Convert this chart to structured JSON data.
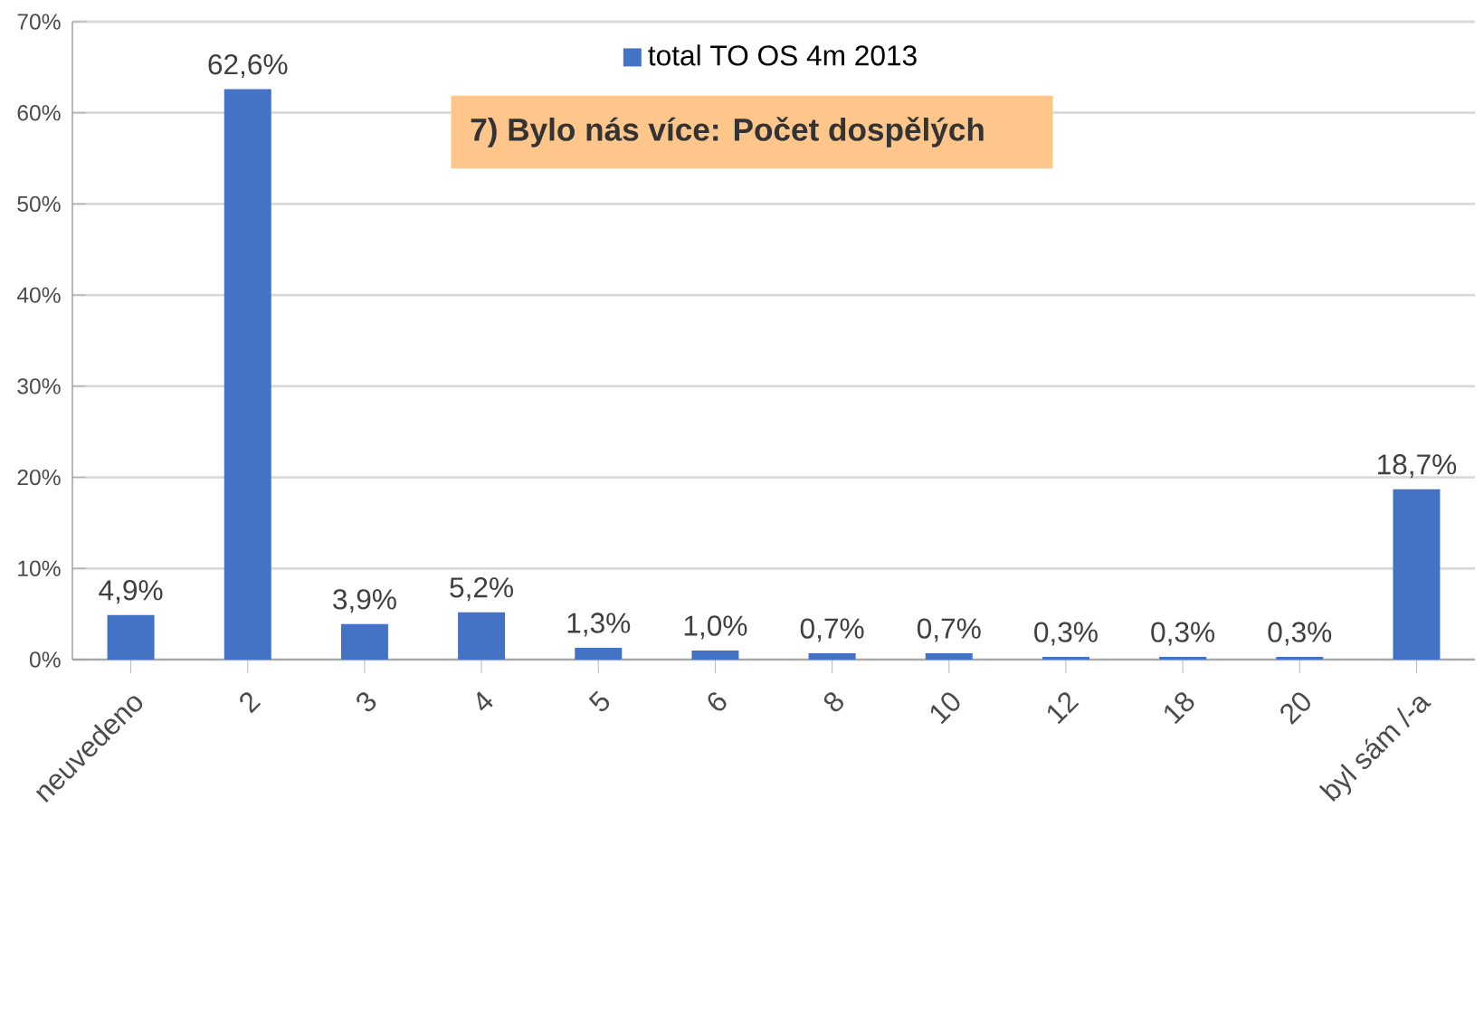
{
  "chart_data": {
    "type": "bar",
    "title": "7) Bylo nás více: Počet dospělých",
    "categories": [
      "neuvedeno",
      "2",
      "3",
      "4",
      "5",
      "6",
      "8",
      "10",
      "12",
      "18",
      "20",
      "byl sám /-a"
    ],
    "series": [
      {
        "name": "total TO OS 4m 2013",
        "color": "#4472c4",
        "values": [
          4.9,
          62.6,
          3.9,
          5.2,
          1.3,
          1.0,
          0.7,
          0.7,
          0.3,
          0.3,
          0.3,
          18.7
        ],
        "value_labels": [
          "4,9%",
          "62,6%",
          "3,9%",
          "5,2%",
          "1,3%",
          "1,0%",
          "0,7%",
          "0,7%",
          "0,3%",
          "0,3%",
          "0,3%",
          "18,7%"
        ]
      }
    ],
    "ylim": [
      0,
      70
    ],
    "yticks": [
      {
        "value": 0,
        "label": "0%"
      },
      {
        "value": 10,
        "label": "10%"
      },
      {
        "value": 20,
        "label": "20%"
      },
      {
        "value": 30,
        "label": "30%"
      },
      {
        "value": 40,
        "label": "40%"
      },
      {
        "value": 50,
        "label": "50%"
      },
      {
        "value": 60,
        "label": "60%"
      },
      {
        "value": 70,
        "label": "70%"
      }
    ],
    "grid": "y",
    "legend": "top"
  }
}
